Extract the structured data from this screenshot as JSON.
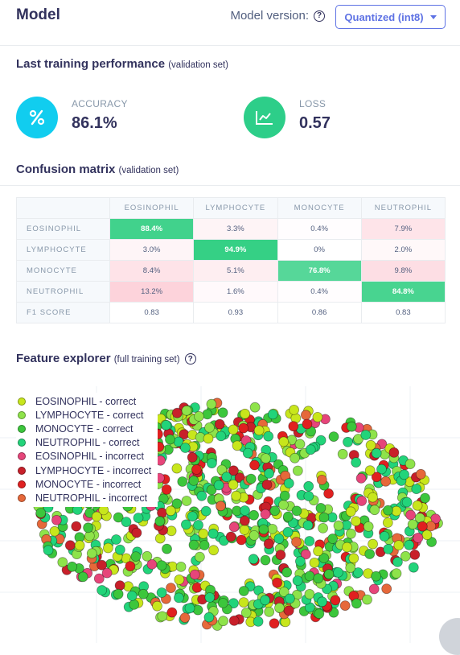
{
  "header": {
    "title": "Model",
    "version_label": "Model version:",
    "version_value": "Quantized (int8)"
  },
  "performance": {
    "title": "Last training performance",
    "subtitle": "(validation set)",
    "accuracy": {
      "label": "ACCURACY",
      "value": "86.1%",
      "icon": "percent-icon",
      "color": "#11cdef"
    },
    "loss": {
      "label": "LOSS",
      "value": "0.57",
      "icon": "trend-chart-icon",
      "color": "#2dce89"
    }
  },
  "confusion": {
    "title": "Confusion matrix",
    "subtitle": "(validation set)",
    "columns": [
      "EOSINOPHIL",
      "LYMPHOCYTE",
      "MONOCYTE",
      "NEUTROPHIL"
    ],
    "rows": [
      {
        "label": "EOSINOPHIL",
        "cells": [
          "88.4%",
          "3.3%",
          "0.4%",
          "7.9%"
        ],
        "values": [
          88.4,
          3.3,
          0.4,
          7.9
        ]
      },
      {
        "label": "LYMPHOCYTE",
        "cells": [
          "3.0%",
          "94.9%",
          "0%",
          "2.0%"
        ],
        "values": [
          3.0,
          94.9,
          0,
          2.0
        ]
      },
      {
        "label": "MONOCYTE",
        "cells": [
          "8.4%",
          "5.1%",
          "76.8%",
          "9.8%"
        ],
        "values": [
          8.4,
          5.1,
          76.8,
          9.8
        ]
      },
      {
        "label": "NEUTROPHIL",
        "cells": [
          "13.2%",
          "1.6%",
          "0.4%",
          "84.8%"
        ],
        "values": [
          13.2,
          1.6,
          0.4,
          84.8
        ]
      }
    ],
    "f1": {
      "label": "F1 SCORE",
      "cells": [
        "0.83",
        "0.93",
        "0.86",
        "0.83"
      ]
    }
  },
  "feature_explorer": {
    "title": "Feature explorer",
    "subtitle": "(full training set)",
    "legend": [
      {
        "label": "EOSINOPHIL - correct",
        "color": "#c8e61c"
      },
      {
        "label": "LYMPHOCYTE - correct",
        "color": "#8ee34a"
      },
      {
        "label": "MONOCYTE - correct",
        "color": "#3cc63c"
      },
      {
        "label": "NEUTROPHIL - correct",
        "color": "#22d47a"
      },
      {
        "label": "EOSINOPHIL - incorrect",
        "color": "#e6457a"
      },
      {
        "label": "LYMPHOCYTE - incorrect",
        "color": "#c8202a"
      },
      {
        "label": "MONOCYTE - incorrect",
        "color": "#e02020"
      },
      {
        "label": "NEUTROPHIL - incorrect",
        "color": "#e6683a"
      }
    ]
  }
}
